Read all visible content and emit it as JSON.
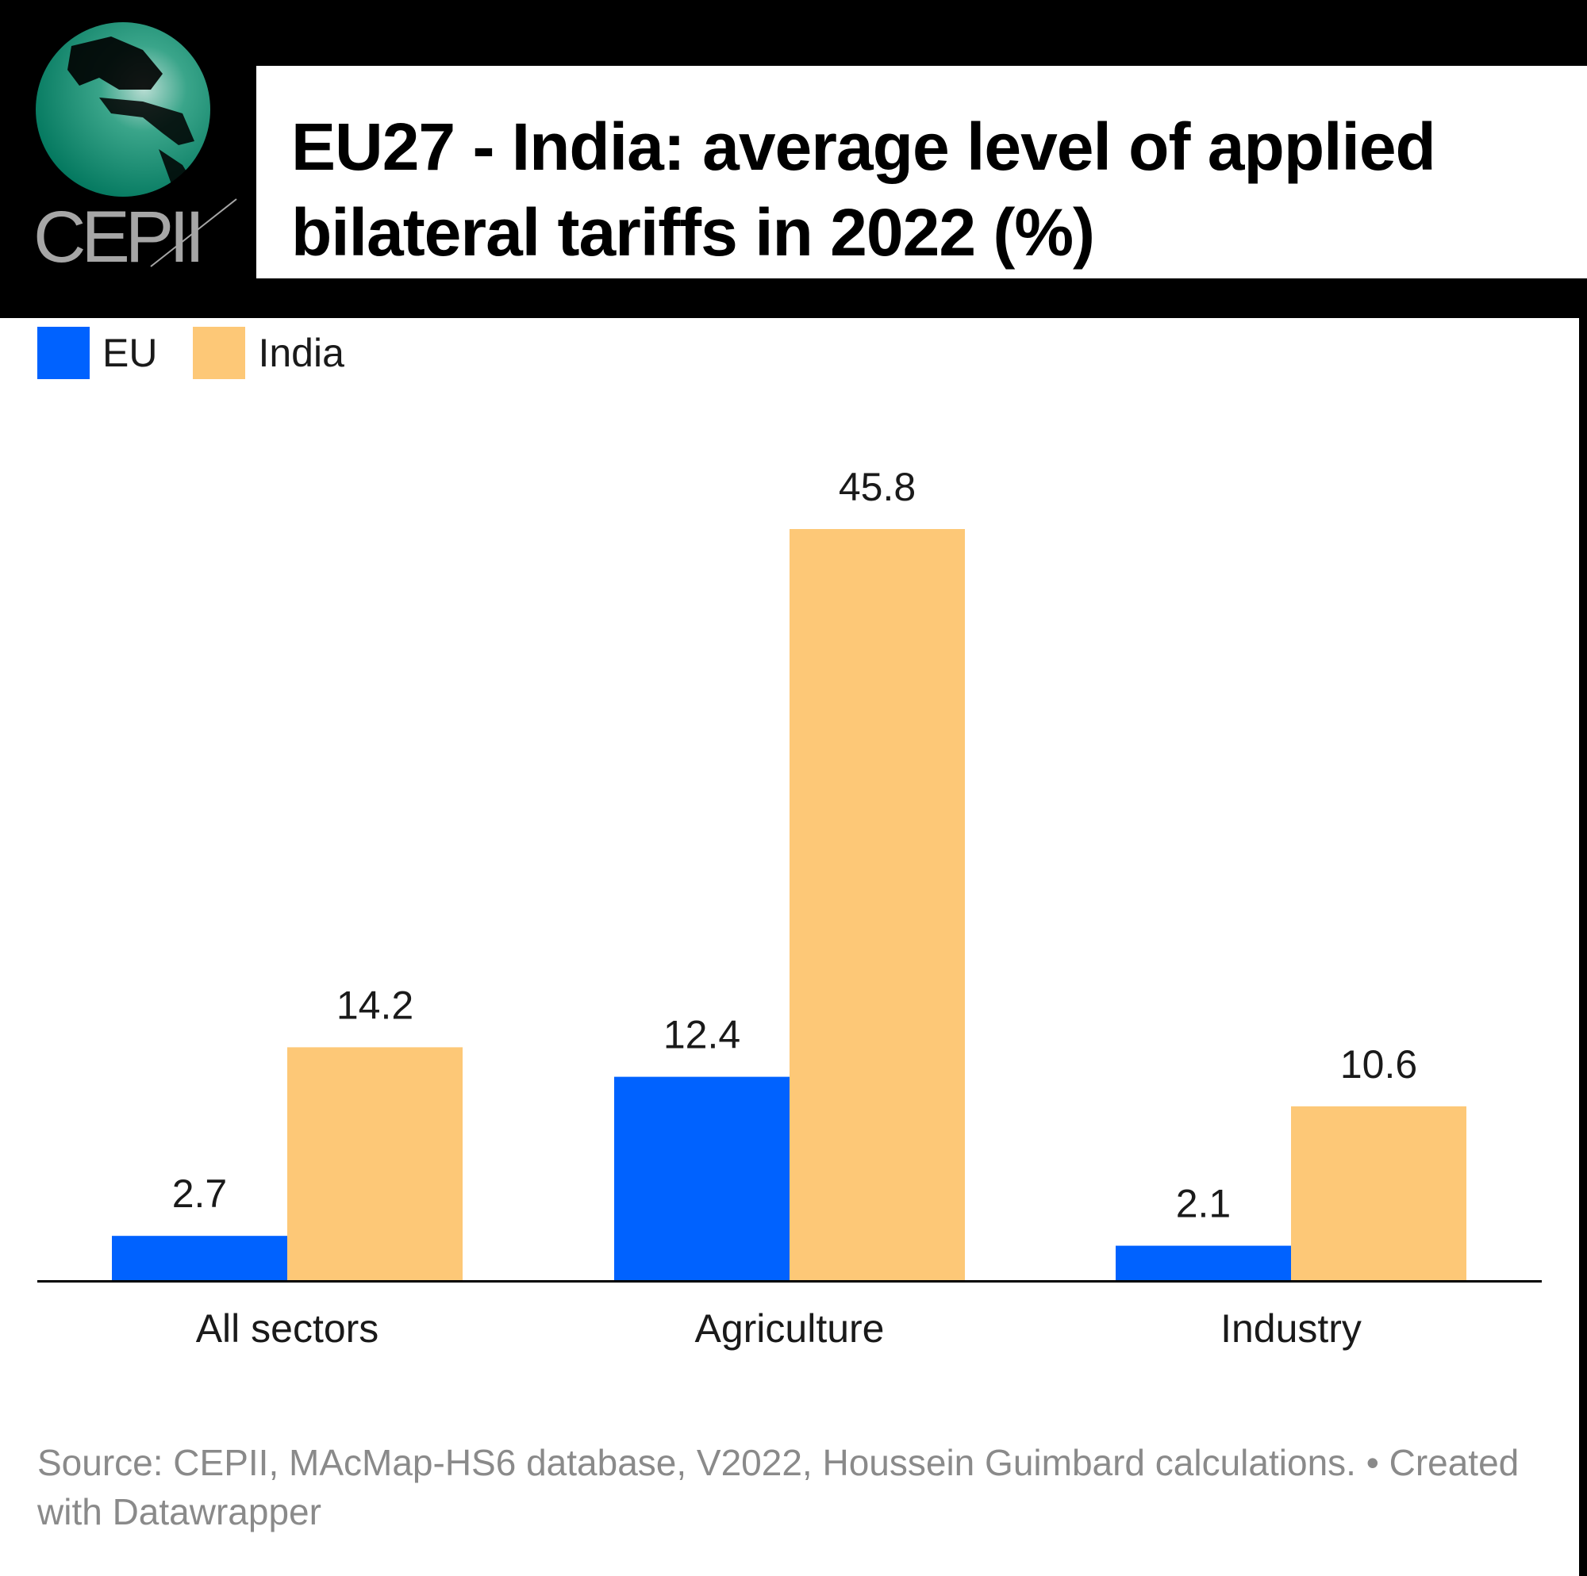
{
  "logo": {
    "text": "CEPII",
    "icon": "globe-icon"
  },
  "chart_data": {
    "type": "bar",
    "title": "EU27 - India: average level of applied bilateral tariffs in 2022 (%)",
    "xlabel": "",
    "ylabel": "",
    "categories": [
      "All sectors",
      "Agriculture",
      "Industry"
    ],
    "series": [
      {
        "name": "EU",
        "color": "#0062ff",
        "values": [
          2.7,
          12.4,
          2.1
        ]
      },
      {
        "name": "India",
        "color": "#fdc877",
        "values": [
          14.2,
          45.8,
          10.6
        ]
      }
    ],
    "ylim": [
      0,
      45.8
    ],
    "grid": false,
    "legend_position": "top-left",
    "data_labels": true
  },
  "footer": {
    "source": "Source: CEPII, MAcMap-HS6 database, V2022, Houssein Guimbard calculations. • Created with Datawrapper"
  }
}
